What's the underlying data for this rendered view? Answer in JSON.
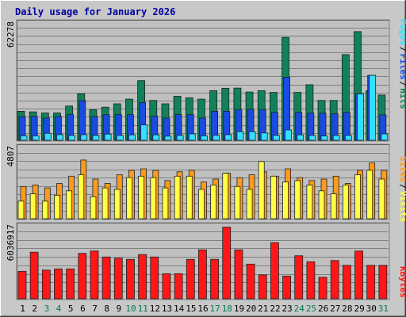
{
  "chart_data": {
    "type": "bar",
    "title": "Daily usage for January 2026",
    "categories": [
      "1",
      "2",
      "3",
      "4",
      "5",
      "6",
      "7",
      "8",
      "9",
      "10",
      "11",
      "12",
      "13",
      "14",
      "15",
      "16",
      "17",
      "18",
      "19",
      "20",
      "21",
      "22",
      "23",
      "24",
      "25",
      "26",
      "27",
      "28",
      "29",
      "30",
      "31"
    ],
    "weekend_days": [
      "3",
      "4",
      "10",
      "11",
      "17",
      "18",
      "24",
      "25",
      "31"
    ],
    "panels": [
      {
        "id": "hits",
        "max_label": "62278",
        "ymax": 62278,
        "series": [
          {
            "name": "Pages",
            "color": "#33e0ff",
            "values": [
              2400,
              2400,
              3700,
              3000,
              2600,
              3000,
              2600,
              3300,
              2600,
              2900,
              8200,
              2900,
              2200,
              2600,
              3400,
              2400,
              2700,
              3000,
              4600,
              4600,
              3900,
              2600,
              5500,
              2900,
              2600,
              2300,
              2600,
              2600,
              24800,
              34700,
              3400
            ]
          },
          {
            "name": "Files",
            "color": "#1a4be0",
            "values": [
              12700,
              12700,
              11900,
              12700,
              13700,
              21200,
              12700,
              13700,
              13700,
              13700,
              20200,
              12900,
              11900,
              13700,
              13700,
              11900,
              15500,
              15500,
              16300,
              16500,
              16300,
              14900,
              33700,
              14900,
              14500,
              14500,
              14200,
              14900,
              24800,
              34700,
              13600
            ]
          },
          {
            "name": "Hits",
            "color": "#128058",
            "values": [
              15500,
              15200,
              14600,
              14600,
              18300,
              24800,
              16300,
              17700,
              19500,
              22000,
              31900,
              21300,
              19500,
              23500,
              22700,
              22000,
              26500,
              27800,
              27900,
              25800,
              26500,
              25600,
              55000,
              25600,
              29700,
              21300,
              21300,
              45800,
              58100,
              26500,
              24200
            ]
          }
        ]
      },
      {
        "id": "visits",
        "max_label": "4807",
        "ymax": 4807,
        "series": [
          {
            "name": "Visits",
            "color": "#ffff44",
            "values": [
              1200,
              1700,
              1200,
              1600,
              1900,
              3000,
              1500,
              2100,
              2000,
              2800,
              2900,
              2800,
              2100,
              2900,
              2900,
              2000,
              2300,
              3100,
              2200,
              2000,
              3900,
              2900,
              2500,
              2600,
              2300,
              1900,
              1700,
              2300,
              3000,
              3300,
              2700
            ]
          },
          {
            "name": "Sites",
            "color": "#ff9a1a",
            "values": [
              2200,
              2300,
              2100,
              2400,
              2900,
              4000,
              2700,
              2400,
              3000,
              3300,
              3400,
              3300,
              2600,
              3200,
              3300,
              2500,
              2700,
              3100,
              2800,
              3000,
              3200,
              2900,
              3400,
              2800,
              2600,
              2700,
              2900,
              2400,
              3300,
              3800,
              3300
            ]
          }
        ]
      },
      {
        "id": "kbytes",
        "max_label": "6036917",
        "ymax": 6036917,
        "series": [
          {
            "name": "KBytes",
            "color": "#ff1616",
            "values": [
              2300000,
              3900000,
              2400000,
              2500000,
              2500000,
              3800000,
              4000000,
              3500000,
              3400000,
              3300000,
              3700000,
              3500000,
              2100000,
              2100000,
              3300000,
              4100000,
              3300000,
              6000000,
              4100000,
              2900000,
              2000000,
              4700000,
              1900000,
              3600000,
              3100000,
              1800000,
              3200000,
              2800000,
              4000000,
              2800000,
              2800000
            ]
          }
        ]
      }
    ],
    "legend": [
      {
        "text": "Pages",
        "color": "#33e0ff",
        "panel": 0
      },
      {
        "text": "/",
        "color": "#000000",
        "panel": 0
      },
      {
        "text": "Files",
        "color": "#1a4be0",
        "panel": 0
      },
      {
        "text": "/",
        "color": "#000000",
        "panel": 0
      },
      {
        "text": "Hits",
        "color": "#128058",
        "panel": 0
      },
      {
        "text": "Sites",
        "color": "#ff9a1a",
        "panel": 1
      },
      {
        "text": "/",
        "color": "#000000",
        "panel": 1
      },
      {
        "text": "Visits",
        "color": "#ffff44",
        "panel": 1
      },
      {
        "text": "KBytes",
        "color": "#ff1616",
        "panel": 2
      }
    ],
    "colors": {
      "background": "#c8c8c8",
      "plot_background": "#c0c0c0",
      "grid": "#808080",
      "title_color": "#0000a0",
      "weekday_label": "#000000",
      "weekend_label": "#00804d"
    },
    "grid": true
  }
}
